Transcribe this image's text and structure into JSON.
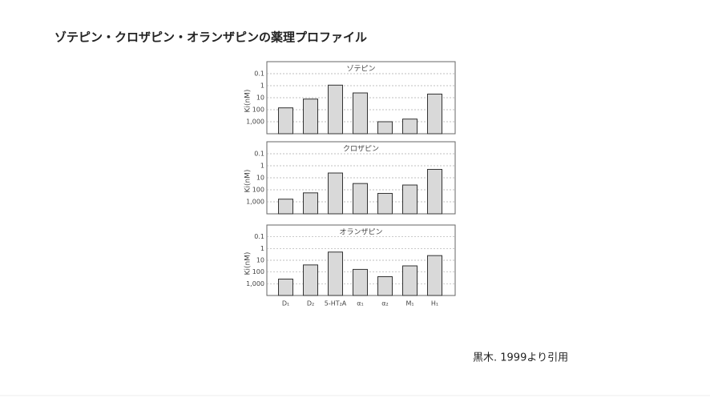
{
  "title": "ゾテピン・クロザピン・オランザピンの薬理プロファイル",
  "source": "黒木. 1999より引用",
  "chart_data": [
    {
      "type": "bar",
      "title": "ゾテピン",
      "y_label": "Ki(nM)",
      "log": true,
      "grid": true,
      "color": "#d9d9d9",
      "categories": [
        null,
        null,
        null,
        null,
        null,
        null,
        null
      ],
      "values": [
        70,
        13,
        0.9,
        4,
        1000,
        600,
        5
      ],
      "ylim": [
        10000,
        0.01
      ],
      "yticks": [
        0.1,
        1,
        10,
        100,
        {
          "value": 1000,
          "label": "1,000"
        }
      ]
    },
    {
      "type": "bar",
      "title": "クロザピン",
      "y_label": "Ki(nM)",
      "log": true,
      "grid": true,
      "color": "#d9d9d9",
      "categories": [
        null,
        null,
        null,
        null,
        null,
        null,
        null
      ],
      "values": [
        600,
        180,
        4,
        30,
        200,
        40,
        2
      ],
      "ylim": [
        10000,
        0.01
      ],
      "yticks": [
        0.1,
        1,
        10,
        100,
        {
          "value": 1000,
          "label": "1,000"
        }
      ]
    },
    {
      "type": "bar",
      "title": "オランザピン",
      "y_label": "Ki(nM)",
      "log": true,
      "grid": true,
      "color": "#d9d9d9",
      "categories": [
        "D₁",
        "D₂",
        "5-HT₂A",
        "α₁",
        "α₂",
        "M₁",
        "H₁"
      ],
      "values": [
        400,
        25,
        2,
        60,
        250,
        30,
        4
      ],
      "ylim": [
        10000,
        0.01
      ],
      "yticks": [
        0.1,
        1,
        10,
        100,
        {
          "value": 1000,
          "label": "1,000"
        }
      ]
    }
  ]
}
